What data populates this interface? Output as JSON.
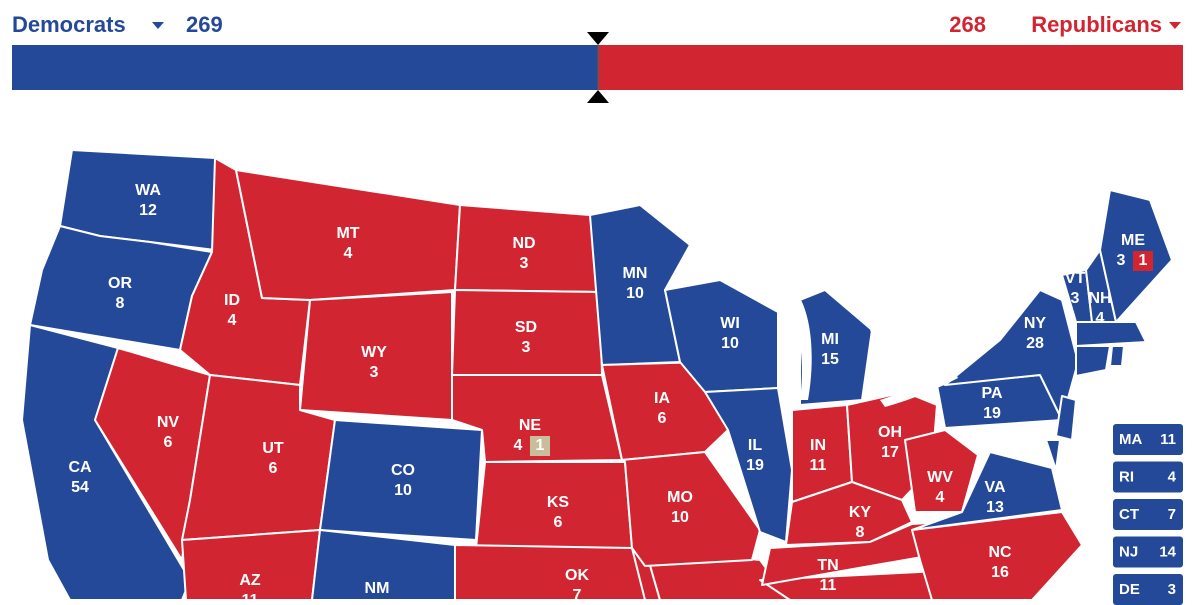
{
  "header": {
    "dem": {
      "label": "Democrats",
      "votes": 269,
      "color": "#244999"
    },
    "rep": {
      "label": "Republicans",
      "votes": 268,
      "color": "#d22532"
    }
  },
  "tossup_color": "#c9be9c",
  "states": [
    {
      "abbr": "WA",
      "votes": 12,
      "party": "dem"
    },
    {
      "abbr": "OR",
      "votes": 8,
      "party": "dem"
    },
    {
      "abbr": "CA",
      "votes": 54,
      "party": "dem"
    },
    {
      "abbr": "NV",
      "votes": 6,
      "party": "rep"
    },
    {
      "abbr": "ID",
      "votes": 4,
      "party": "rep"
    },
    {
      "abbr": "MT",
      "votes": 4,
      "party": "rep"
    },
    {
      "abbr": "WY",
      "votes": 3,
      "party": "rep"
    },
    {
      "abbr": "UT",
      "votes": 6,
      "party": "rep"
    },
    {
      "abbr": "AZ",
      "votes": 11,
      "party": "rep"
    },
    {
      "abbr": "CO",
      "votes": 10,
      "party": "dem"
    },
    {
      "abbr": "NM",
      "party": "dem"
    },
    {
      "abbr": "ND",
      "votes": 3,
      "party": "rep"
    },
    {
      "abbr": "SD",
      "votes": 3,
      "party": "rep"
    },
    {
      "abbr": "NE",
      "votes": 4,
      "party": "rep",
      "split": {
        "votes": 1,
        "party": "tossup"
      }
    },
    {
      "abbr": "KS",
      "votes": 6,
      "party": "rep"
    },
    {
      "abbr": "OK",
      "votes": 7,
      "party": "rep"
    },
    {
      "abbr": "MN",
      "votes": 10,
      "party": "dem"
    },
    {
      "abbr": "IA",
      "votes": 6,
      "party": "rep"
    },
    {
      "abbr": "MO",
      "votes": 10,
      "party": "rep"
    },
    {
      "abbr": "WI",
      "votes": 10,
      "party": "dem"
    },
    {
      "abbr": "IL",
      "votes": 19,
      "party": "dem"
    },
    {
      "abbr": "MI",
      "votes": 15,
      "party": "dem"
    },
    {
      "abbr": "IN",
      "votes": 11,
      "party": "rep"
    },
    {
      "abbr": "OH",
      "votes": 17,
      "party": "rep"
    },
    {
      "abbr": "KY",
      "votes": 8,
      "party": "rep"
    },
    {
      "abbr": "TN",
      "votes": 11,
      "party": "rep"
    },
    {
      "abbr": "WV",
      "votes": 4,
      "party": "rep"
    },
    {
      "abbr": "VA",
      "votes": 13,
      "party": "dem"
    },
    {
      "abbr": "NC",
      "votes": 16,
      "party": "rep"
    },
    {
      "abbr": "PA",
      "votes": 19,
      "party": "dem"
    },
    {
      "abbr": "NY",
      "votes": 28,
      "party": "dem"
    },
    {
      "abbr": "VT",
      "votes": 3,
      "party": "dem"
    },
    {
      "abbr": "NH",
      "votes": 4,
      "party": "dem"
    },
    {
      "abbr": "ME",
      "votes": 3,
      "party": "dem",
      "split": {
        "votes": 1,
        "party": "rep"
      }
    }
  ],
  "small_states": [
    {
      "abbr": "MA",
      "votes": 11,
      "party": "dem"
    },
    {
      "abbr": "RI",
      "votes": 4,
      "party": "dem"
    },
    {
      "abbr": "CT",
      "votes": 7,
      "party": "dem"
    },
    {
      "abbr": "NJ",
      "votes": 14,
      "party": "dem"
    },
    {
      "abbr": "DE",
      "votes": 3,
      "party": "dem"
    }
  ]
}
